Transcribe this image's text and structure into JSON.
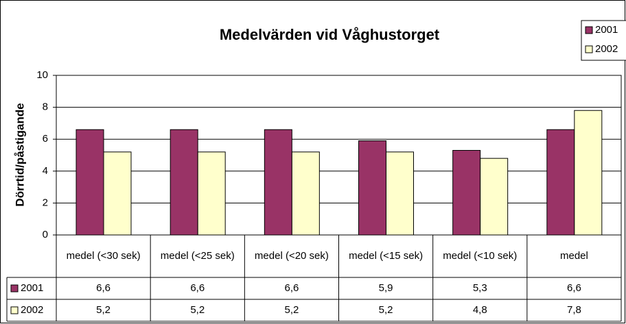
{
  "chart_data": {
    "type": "bar",
    "title": "Medelvärden vid Våghustorget",
    "y_label": "Dörrtid/påstigande",
    "categories": [
      "medel (<30 sek)",
      "medel (<25 sek)",
      "medel (<20 sek)",
      "medel (<15 sek)",
      "medel (<10 sek)",
      "medel"
    ],
    "series": [
      {
        "name": "2001",
        "color": "#993366",
        "values": [
          6.6,
          6.6,
          6.6,
          5.9,
          5.3,
          6.6
        ],
        "value_labels": [
          "6,6",
          "6,6",
          "6,6",
          "5,9",
          "5,3",
          "6,6"
        ]
      },
      {
        "name": "2002",
        "color": "#ffffcc",
        "values": [
          5.2,
          5.2,
          5.2,
          5.2,
          4.8,
          7.8
        ],
        "value_labels": [
          "5,2",
          "5,2",
          "5,2",
          "5,2",
          "4,8",
          "7,8"
        ]
      }
    ],
    "ylim": [
      0,
      10
    ],
    "yticks": [
      0,
      2,
      4,
      6,
      8,
      10
    ],
    "grid": true,
    "legend": "top-right"
  }
}
